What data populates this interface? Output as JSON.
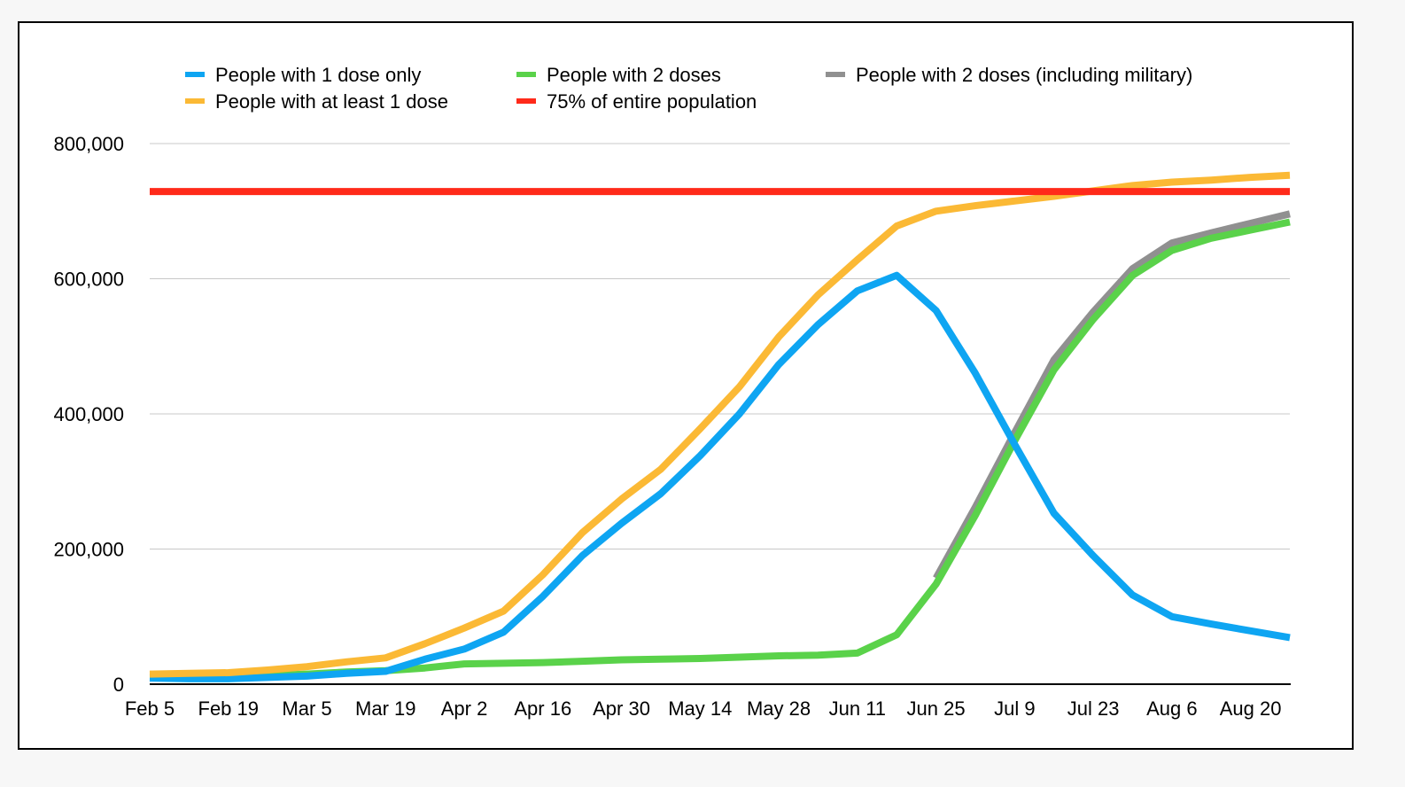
{
  "chart_data": {
    "type": "line",
    "title": "",
    "xlabel": "",
    "ylabel": "",
    "ylim": [
      0,
      800000
    ],
    "yticks": [
      0,
      200000,
      400000,
      600000,
      800000
    ],
    "ytick_labels": [
      "0",
      "200,000",
      "400,000",
      "600,000",
      "800,000"
    ],
    "grid": true,
    "legend_position": "top",
    "xtick_labels": [
      "Feb 5",
      "Feb 19",
      "Mar 5",
      "Mar 19",
      "Apr 2",
      "Apr 16",
      "Apr 30",
      "May 14",
      "May 28",
      "Jun 11",
      "Jun 25",
      "Jul 9",
      "Jul 23",
      "Aug 6",
      "Aug 20"
    ],
    "x": [
      "Feb 5",
      "Feb 12",
      "Feb 19",
      "Feb 26",
      "Mar 5",
      "Mar 12",
      "Mar 19",
      "Mar 26",
      "Apr 2",
      "Apr 9",
      "Apr 16",
      "Apr 23",
      "Apr 30",
      "May 7",
      "May 14",
      "May 21",
      "May 28",
      "Jun 4",
      "Jun 11",
      "Jun 18",
      "Jun 25",
      "Jul 2",
      "Jul 9",
      "Jul 16",
      "Jul 23",
      "Jul 30",
      "Aug 6",
      "Aug 13",
      "Aug 20",
      "Aug 27"
    ],
    "series": [
      {
        "name": "People with 1 dose only",
        "color": "#0ea5f2",
        "values": [
          9000,
          8000,
          8000,
          10000,
          12000,
          16000,
          19000,
          37000,
          52000,
          77000,
          130000,
          190000,
          238000,
          282000,
          338000,
          400000,
          473000,
          532000,
          582000,
          605000,
          553000,
          460000,
          355000,
          253000,
          190000,
          132000,
          100000,
          89000,
          79000,
          69000
        ]
      },
      {
        "name": "People with 2 doses",
        "color": "#5ad24a",
        "values": [
          10000,
          11000,
          12000,
          13000,
          15000,
          18000,
          20000,
          24000,
          30000,
          31000,
          32000,
          34000,
          36000,
          37000,
          38000,
          40000,
          42000,
          43000,
          46000,
          73000,
          148000,
          250000,
          360000,
          465000,
          540000,
          605000,
          642000,
          660000,
          672000,
          684000
        ]
      },
      {
        "name": "People with 2 doses (including military)",
        "color": "#909090",
        "values": [
          null,
          null,
          null,
          null,
          null,
          null,
          null,
          null,
          null,
          null,
          null,
          null,
          null,
          null,
          null,
          null,
          null,
          null,
          null,
          null,
          157000,
          262000,
          372000,
          480000,
          551000,
          615000,
          653000,
          668000,
          682000,
          696000
        ]
      },
      {
        "name": "People with at least 1 dose",
        "color": "#fbb935",
        "values": [
          15000,
          16000,
          17000,
          21000,
          26000,
          33000,
          39000,
          60000,
          83000,
          108000,
          162000,
          224000,
          274000,
          318000,
          378000,
          440000,
          514000,
          576000,
          628000,
          678000,
          700000,
          708000,
          715000,
          722000,
          730000,
          738000,
          743000,
          746000,
          750000,
          753000
        ]
      },
      {
        "name": "75% of entire population",
        "color": "#ff2a1a",
        "values": [
          729000,
          729000,
          729000,
          729000,
          729000,
          729000,
          729000,
          729000,
          729000,
          729000,
          729000,
          729000,
          729000,
          729000,
          729000,
          729000,
          729000,
          729000,
          729000,
          729000,
          729000,
          729000,
          729000,
          729000,
          729000,
          729000,
          729000,
          729000,
          729000,
          729000
        ]
      }
    ],
    "legend_order": [
      0,
      1,
      2,
      3,
      4
    ]
  }
}
